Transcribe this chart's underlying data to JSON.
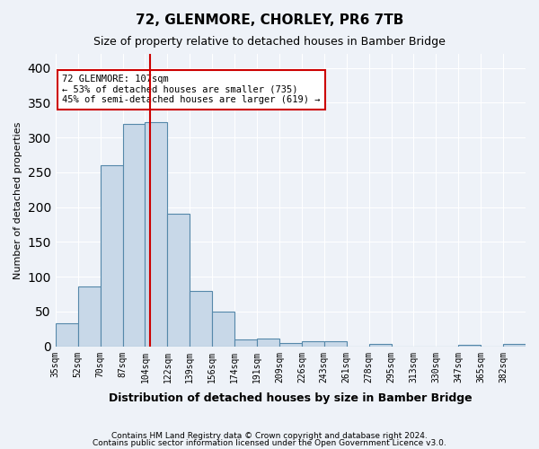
{
  "title": "72, GLENMORE, CHORLEY, PR6 7TB",
  "subtitle": "Size of property relative to detached houses in Bamber Bridge",
  "xlabel": "Distribution of detached houses by size in Bamber Bridge",
  "ylabel": "Number of detached properties",
  "bar_color": "#c8d8e8",
  "bar_edge_color": "#5588aa",
  "categories": [
    "35sqm",
    "52sqm",
    "70sqm",
    "87sqm",
    "104sqm",
    "122sqm",
    "139sqm",
    "156sqm",
    "174sqm",
    "191sqm",
    "209sqm",
    "226sqm",
    "243sqm",
    "261sqm",
    "278sqm",
    "295sqm",
    "313sqm",
    "330sqm",
    "347sqm",
    "365sqm",
    "382sqm"
  ],
  "values": [
    33,
    86,
    260,
    320,
    322,
    190,
    80,
    50,
    10,
    11,
    5,
    7,
    7,
    0,
    4,
    0,
    0,
    0,
    2,
    0,
    3
  ],
  "ylim": [
    0,
    420
  ],
  "yticks": [
    0,
    50,
    100,
    150,
    200,
    250,
    300,
    350,
    400
  ],
  "property_line_x": 107,
  "property_line_color": "#cc0000",
  "annotation_text": "72 GLENMORE: 107sqm\n← 53% of detached houses are smaller (735)\n45% of semi-detached houses are larger (619) →",
  "annotation_box_color": "#ffffff",
  "annotation_box_edge_color": "#cc0000",
  "footer_line1": "Contains HM Land Registry data © Crown copyright and database right 2024.",
  "footer_line2": "Contains public sector information licensed under the Open Government Licence v3.0.",
  "bg_color": "#eef2f8",
  "plot_bg_color": "#eef2f8",
  "grid_color": "#ffffff",
  "bin_width": 17
}
